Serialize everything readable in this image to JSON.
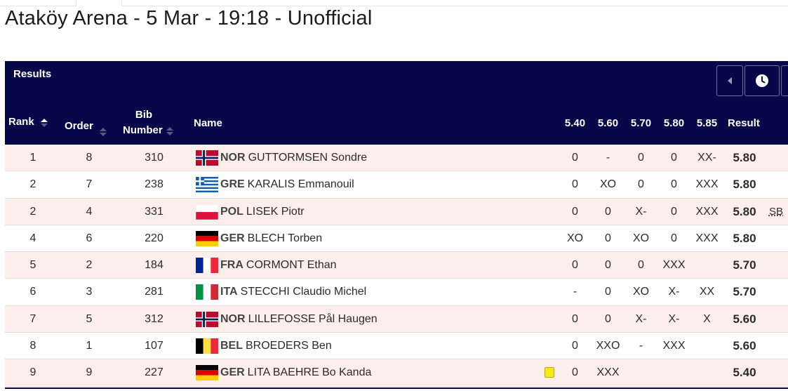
{
  "title": "Ataköy Arena - 5 Mar - 19:18 - Unofficial",
  "results_label": "Results",
  "columns": {
    "rank": "Rank",
    "order": "Order",
    "bib_line1": "Bib",
    "bib_line2": "Number",
    "name": "Name",
    "heights": [
      "5.40",
      "5.60",
      "5.70",
      "5.80",
      "5.85"
    ],
    "result": "Result"
  },
  "icons": {
    "prev": "caret-left-icon",
    "history": "clock-icon",
    "sort": "sort-arrows-icon"
  },
  "rows": [
    {
      "rank": "1",
      "order": "8",
      "bib": "310",
      "noc": "NOR",
      "name": "GUTTORMSEN Sondre",
      "flag": "NOR",
      "attempts": [
        "0",
        "-",
        "0",
        "0",
        "XX-"
      ],
      "result": "5.80",
      "record": "",
      "yellow_card": false
    },
    {
      "rank": "2",
      "order": "7",
      "bib": "238",
      "noc": "GRE",
      "name": "KARALIS Emmanouil",
      "flag": "GRE",
      "attempts": [
        "0",
        "XO",
        "0",
        "0",
        "XXX"
      ],
      "result": "5.80",
      "record": "",
      "yellow_card": false
    },
    {
      "rank": "2",
      "order": "4",
      "bib": "331",
      "noc": "POL",
      "name": "LISEK Piotr",
      "flag": "POL",
      "attempts": [
        "0",
        "0",
        "X-",
        "0",
        "XXX"
      ],
      "result": "5.80",
      "record": "SB",
      "yellow_card": false
    },
    {
      "rank": "4",
      "order": "6",
      "bib": "220",
      "noc": "GER",
      "name": "BLECH Torben",
      "flag": "GER",
      "attempts": [
        "XO",
        "0",
        "XO",
        "0",
        "XXX"
      ],
      "result": "5.80",
      "record": "",
      "yellow_card": false
    },
    {
      "rank": "5",
      "order": "2",
      "bib": "184",
      "noc": "FRA",
      "name": "CORMONT Ethan",
      "flag": "FRA",
      "attempts": [
        "0",
        "0",
        "0",
        "XXX",
        ""
      ],
      "result": "5.70",
      "record": "",
      "yellow_card": false
    },
    {
      "rank": "6",
      "order": "3",
      "bib": "281",
      "noc": "ITA",
      "name": "STECCHI Claudio Michel",
      "flag": "ITA",
      "attempts": [
        "-",
        "0",
        "XO",
        "X-",
        "XX"
      ],
      "result": "5.70",
      "record": "",
      "yellow_card": false
    },
    {
      "rank": "7",
      "order": "5",
      "bib": "312",
      "noc": "NOR",
      "name": "LILLEFOSSE Pål Haugen",
      "flag": "NOR",
      "attempts": [
        "0",
        "0",
        "X-",
        "X-",
        "X"
      ],
      "result": "5.60",
      "record": "",
      "yellow_card": false
    },
    {
      "rank": "8",
      "order": "1",
      "bib": "107",
      "noc": "BEL",
      "name": "BROEDERS Ben",
      "flag": "BEL",
      "attempts": [
        "0",
        "XXO",
        "-",
        "XXX",
        ""
      ],
      "result": "5.60",
      "record": "",
      "yellow_card": false
    },
    {
      "rank": "9",
      "order": "9",
      "bib": "227",
      "noc": "GER",
      "name": "LITA BAEHRE Bo Kanda",
      "flag": "GER",
      "attempts": [
        "0",
        "XXX",
        "",
        "",
        ""
      ],
      "result": "5.40",
      "record": "",
      "yellow_card": true
    }
  ],
  "colors": {
    "header_bg": "#07084a",
    "row_alt_bg": "#fcefeb",
    "yellow_card": "#f5ea15"
  }
}
